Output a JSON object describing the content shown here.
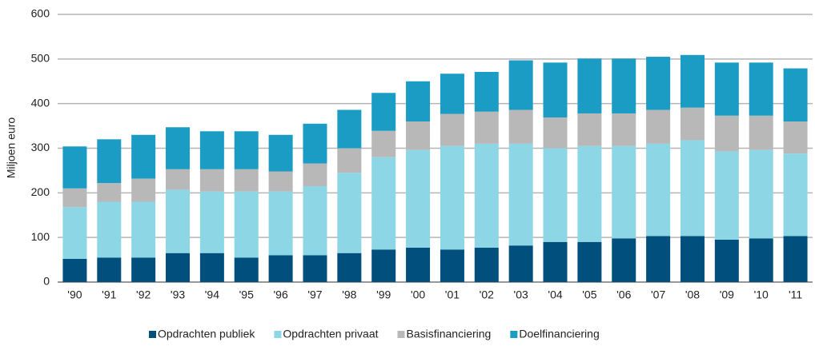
{
  "chart_data": {
    "type": "stacked_bar",
    "ylabel": "Miljoen euro",
    "categories": [
      "'90",
      "'91",
      "'92",
      "'93",
      "'94",
      "'95",
      "'96",
      "'97",
      "'98",
      "'99",
      "'00",
      "'01",
      "'02",
      "'03",
      "'04",
      "'05",
      "'06",
      "'07",
      "'08",
      "'09",
      "'10",
      "'11"
    ],
    "series": [
      {
        "name": "Opdrachten publiek",
        "color": "#004f7c",
        "values": [
          52,
          55,
          55,
          65,
          65,
          55,
          60,
          60,
          65,
          73,
          77,
          73,
          77,
          82,
          90,
          90,
          98,
          103,
          103,
          95,
          98,
          103
        ]
      },
      {
        "name": "Opdrachten privaat",
        "color": "#8dd6e6",
        "values": [
          116,
          125,
          125,
          142,
          138,
          148,
          143,
          155,
          180,
          207,
          219,
          232,
          233,
          228,
          210,
          215,
          207,
          207,
          215,
          198,
          198,
          185
        ]
      },
      {
        "name": "Basisfinanciering",
        "color": "#b8b8b8",
        "values": [
          42,
          42,
          52,
          46,
          50,
          50,
          45,
          51,
          55,
          59,
          64,
          72,
          72,
          76,
          69,
          73,
          73,
          76,
          73,
          80,
          77,
          72
        ]
      },
      {
        "name": "Doelfinanciering",
        "color": "#1a9cc4",
        "values": [
          94,
          98,
          98,
          94,
          85,
          85,
          82,
          89,
          86,
          85,
          90,
          90,
          89,
          111,
          123,
          123,
          123,
          119,
          118,
          119,
          119,
          119
        ]
      }
    ],
    "ylim": [
      0,
      600
    ],
    "yticks": [
      0,
      100,
      200,
      300,
      400,
      500,
      600
    ],
    "grid": true,
    "legend": "bottom"
  }
}
